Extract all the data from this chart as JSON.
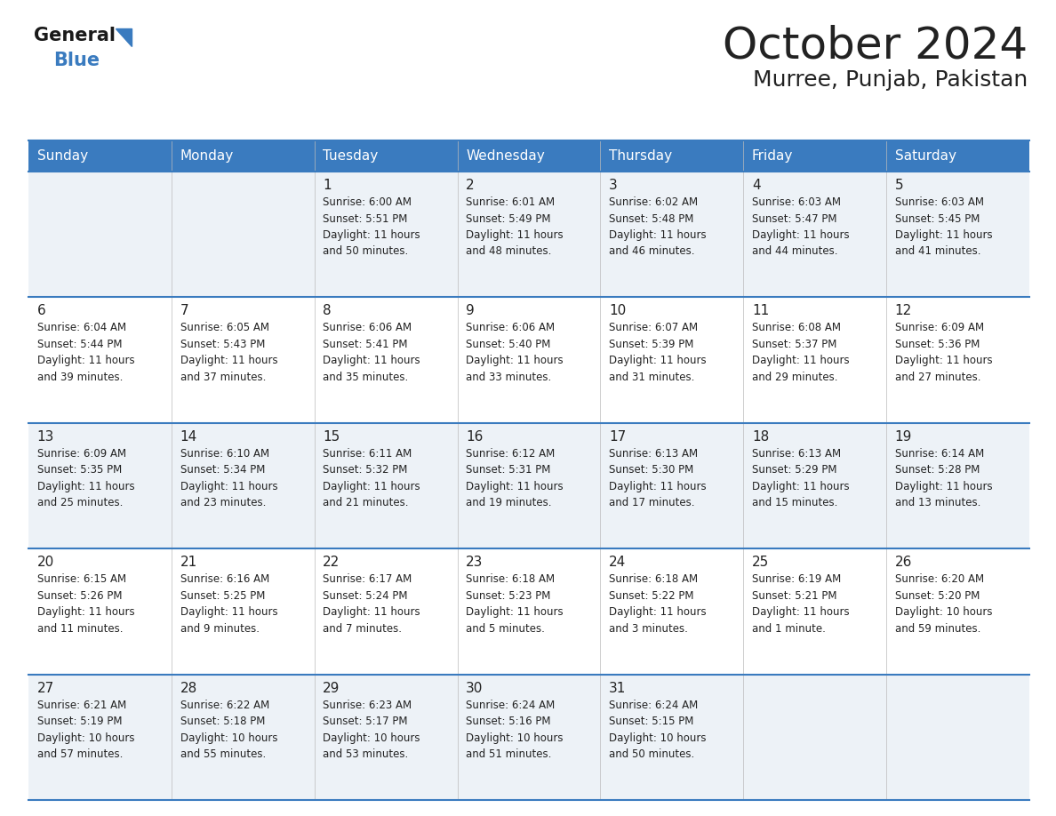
{
  "title": "October 2024",
  "subtitle": "Murree, Punjab, Pakistan",
  "header_color": "#3a7bbf",
  "header_text_color": "#ffffff",
  "row_line_color": "#3a7bbf",
  "text_color": "#222222",
  "cell_bg_light": "#edf2f7",
  "cell_bg_white": "#ffffff",
  "days_of_week": [
    "Sunday",
    "Monday",
    "Tuesday",
    "Wednesday",
    "Thursday",
    "Friday",
    "Saturday"
  ],
  "calendar_data": [
    [
      {
        "day": "",
        "info": ""
      },
      {
        "day": "",
        "info": ""
      },
      {
        "day": "1",
        "info": "Sunrise: 6:00 AM\nSunset: 5:51 PM\nDaylight: 11 hours\nand 50 minutes."
      },
      {
        "day": "2",
        "info": "Sunrise: 6:01 AM\nSunset: 5:49 PM\nDaylight: 11 hours\nand 48 minutes."
      },
      {
        "day": "3",
        "info": "Sunrise: 6:02 AM\nSunset: 5:48 PM\nDaylight: 11 hours\nand 46 minutes."
      },
      {
        "day": "4",
        "info": "Sunrise: 6:03 AM\nSunset: 5:47 PM\nDaylight: 11 hours\nand 44 minutes."
      },
      {
        "day": "5",
        "info": "Sunrise: 6:03 AM\nSunset: 5:45 PM\nDaylight: 11 hours\nand 41 minutes."
      }
    ],
    [
      {
        "day": "6",
        "info": "Sunrise: 6:04 AM\nSunset: 5:44 PM\nDaylight: 11 hours\nand 39 minutes."
      },
      {
        "day": "7",
        "info": "Sunrise: 6:05 AM\nSunset: 5:43 PM\nDaylight: 11 hours\nand 37 minutes."
      },
      {
        "day": "8",
        "info": "Sunrise: 6:06 AM\nSunset: 5:41 PM\nDaylight: 11 hours\nand 35 minutes."
      },
      {
        "day": "9",
        "info": "Sunrise: 6:06 AM\nSunset: 5:40 PM\nDaylight: 11 hours\nand 33 minutes."
      },
      {
        "day": "10",
        "info": "Sunrise: 6:07 AM\nSunset: 5:39 PM\nDaylight: 11 hours\nand 31 minutes."
      },
      {
        "day": "11",
        "info": "Sunrise: 6:08 AM\nSunset: 5:37 PM\nDaylight: 11 hours\nand 29 minutes."
      },
      {
        "day": "12",
        "info": "Sunrise: 6:09 AM\nSunset: 5:36 PM\nDaylight: 11 hours\nand 27 minutes."
      }
    ],
    [
      {
        "day": "13",
        "info": "Sunrise: 6:09 AM\nSunset: 5:35 PM\nDaylight: 11 hours\nand 25 minutes."
      },
      {
        "day": "14",
        "info": "Sunrise: 6:10 AM\nSunset: 5:34 PM\nDaylight: 11 hours\nand 23 minutes."
      },
      {
        "day": "15",
        "info": "Sunrise: 6:11 AM\nSunset: 5:32 PM\nDaylight: 11 hours\nand 21 minutes."
      },
      {
        "day": "16",
        "info": "Sunrise: 6:12 AM\nSunset: 5:31 PM\nDaylight: 11 hours\nand 19 minutes."
      },
      {
        "day": "17",
        "info": "Sunrise: 6:13 AM\nSunset: 5:30 PM\nDaylight: 11 hours\nand 17 minutes."
      },
      {
        "day": "18",
        "info": "Sunrise: 6:13 AM\nSunset: 5:29 PM\nDaylight: 11 hours\nand 15 minutes."
      },
      {
        "day": "19",
        "info": "Sunrise: 6:14 AM\nSunset: 5:28 PM\nDaylight: 11 hours\nand 13 minutes."
      }
    ],
    [
      {
        "day": "20",
        "info": "Sunrise: 6:15 AM\nSunset: 5:26 PM\nDaylight: 11 hours\nand 11 minutes."
      },
      {
        "day": "21",
        "info": "Sunrise: 6:16 AM\nSunset: 5:25 PM\nDaylight: 11 hours\nand 9 minutes."
      },
      {
        "day": "22",
        "info": "Sunrise: 6:17 AM\nSunset: 5:24 PM\nDaylight: 11 hours\nand 7 minutes."
      },
      {
        "day": "23",
        "info": "Sunrise: 6:18 AM\nSunset: 5:23 PM\nDaylight: 11 hours\nand 5 minutes."
      },
      {
        "day": "24",
        "info": "Sunrise: 6:18 AM\nSunset: 5:22 PM\nDaylight: 11 hours\nand 3 minutes."
      },
      {
        "day": "25",
        "info": "Sunrise: 6:19 AM\nSunset: 5:21 PM\nDaylight: 11 hours\nand 1 minute."
      },
      {
        "day": "26",
        "info": "Sunrise: 6:20 AM\nSunset: 5:20 PM\nDaylight: 10 hours\nand 59 minutes."
      }
    ],
    [
      {
        "day": "27",
        "info": "Sunrise: 6:21 AM\nSunset: 5:19 PM\nDaylight: 10 hours\nand 57 minutes."
      },
      {
        "day": "28",
        "info": "Sunrise: 6:22 AM\nSunset: 5:18 PM\nDaylight: 10 hours\nand 55 minutes."
      },
      {
        "day": "29",
        "info": "Sunrise: 6:23 AM\nSunset: 5:17 PM\nDaylight: 10 hours\nand 53 minutes."
      },
      {
        "day": "30",
        "info": "Sunrise: 6:24 AM\nSunset: 5:16 PM\nDaylight: 10 hours\nand 51 minutes."
      },
      {
        "day": "31",
        "info": "Sunrise: 6:24 AM\nSunset: 5:15 PM\nDaylight: 10 hours\nand 50 minutes."
      },
      {
        "day": "",
        "info": ""
      },
      {
        "day": "",
        "info": ""
      }
    ]
  ]
}
